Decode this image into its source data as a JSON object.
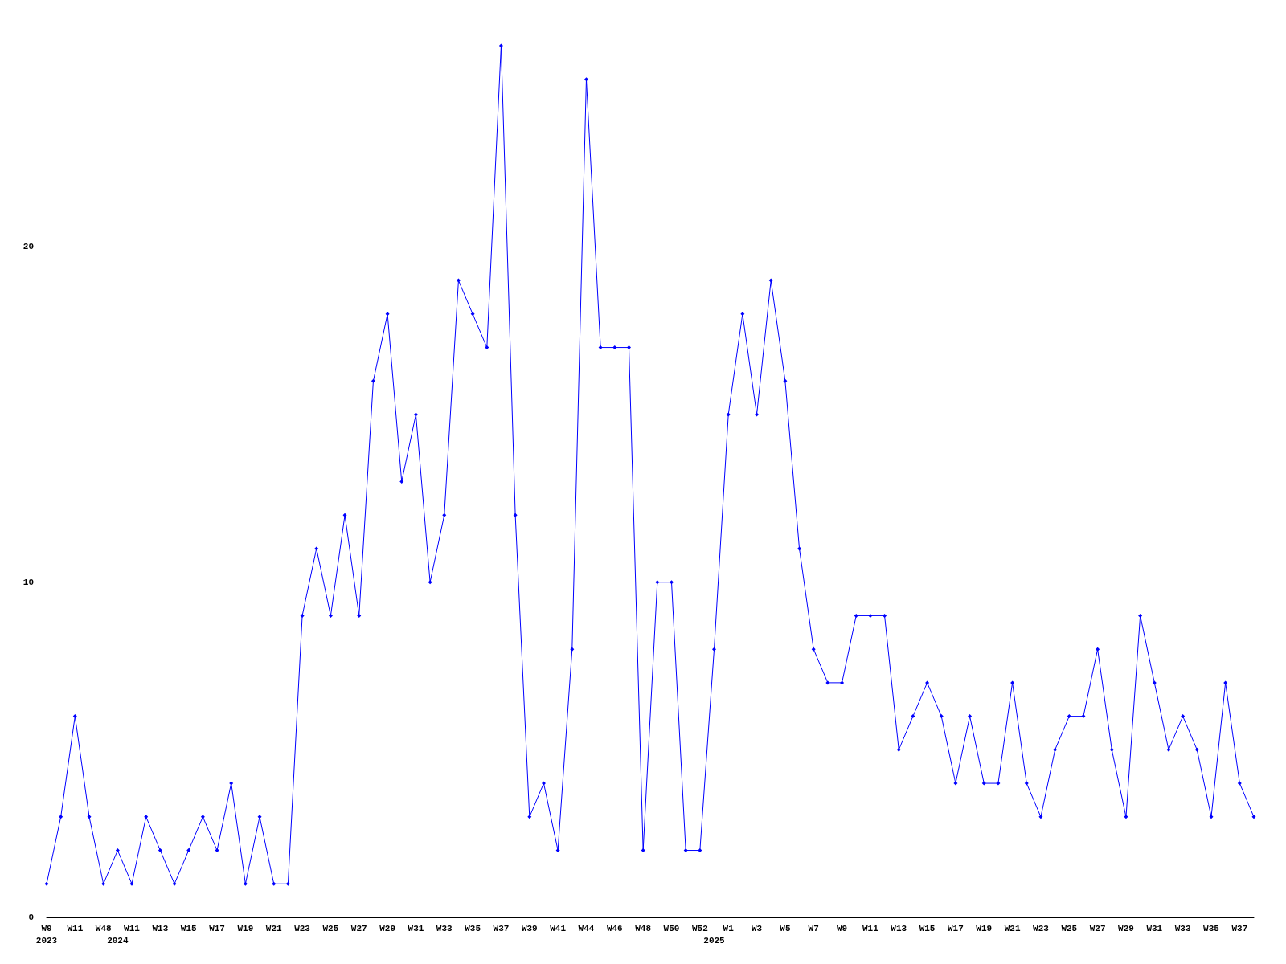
{
  "chart_data": {
    "type": "line",
    "categories": [
      "W9\n2023",
      null,
      "W11",
      null,
      "W48",
      "\n2024",
      "W11",
      null,
      "W13",
      null,
      "W15",
      null,
      "W17",
      null,
      "W19",
      null,
      "W21",
      null,
      "W23",
      null,
      "W25",
      null,
      "W27",
      null,
      "W29",
      null,
      "W31",
      null,
      "W33",
      null,
      "W35",
      null,
      "W37",
      null,
      "W39",
      null,
      "W41",
      null,
      "W44",
      null,
      "W46",
      null,
      "W48",
      null,
      "W50",
      null,
      "W52",
      "\n2025",
      "W1",
      null,
      "W3",
      null,
      "W5",
      null,
      "W7",
      null,
      "W9",
      null,
      "W11",
      null,
      "W13",
      null,
      "W15",
      null,
      "W17",
      null,
      "W19",
      null,
      "W21",
      null,
      "W23",
      null,
      "W25",
      null,
      "W27",
      null,
      "W29",
      null,
      "W31",
      null,
      "W33",
      null,
      "W35",
      null,
      "W37",
      null
    ],
    "series": [
      {
        "color": "#0000ff",
        "values": [
          1,
          3,
          6,
          3,
          1,
          2,
          1,
          3,
          2,
          1,
          2,
          3,
          2,
          4,
          1,
          3,
          1,
          1,
          9,
          11,
          9,
          12,
          9,
          16,
          18,
          13,
          15,
          10,
          12,
          19,
          18,
          17,
          26,
          12,
          3,
          4,
          2,
          8,
          25,
          17,
          17,
          17,
          2,
          10,
          10,
          2,
          2,
          8,
          15,
          18,
          15,
          19,
          16,
          11,
          8,
          7,
          7,
          9,
          9,
          9,
          5,
          6,
          7,
          6,
          4,
          6,
          4,
          4,
          7,
          4,
          3,
          5,
          6,
          6,
          8,
          5,
          3,
          9,
          7,
          5,
          6,
          5,
          3,
          7,
          4,
          3
        ]
      }
    ],
    "ylim": [
      0,
      26
    ],
    "yticks": [
      0,
      10,
      20
    ],
    "grid": "y",
    "marker": "diamond",
    "line_style": "solid"
  }
}
